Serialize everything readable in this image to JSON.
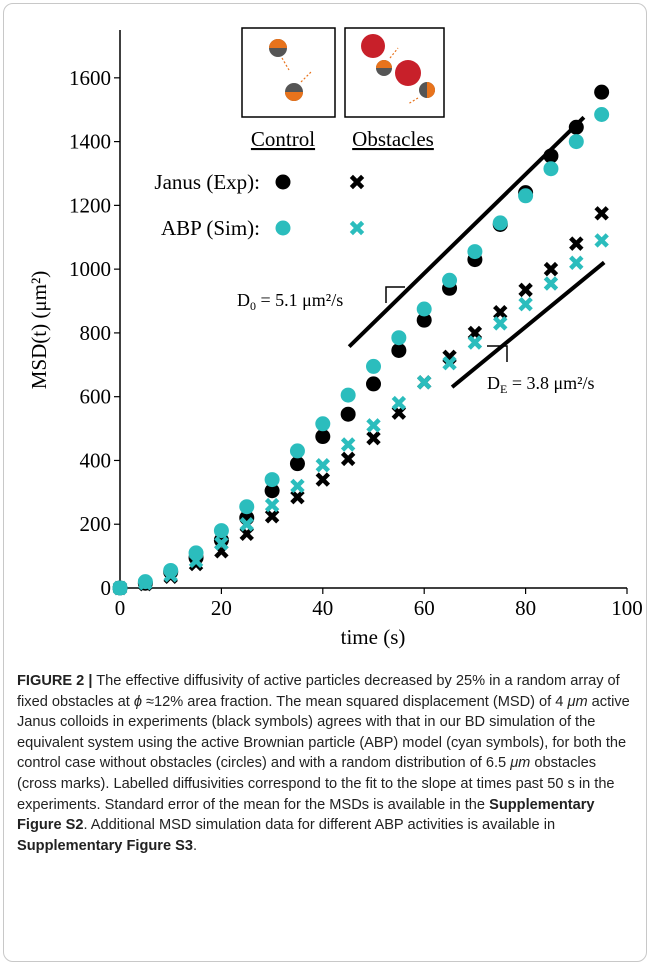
{
  "chart_data": {
    "type": "scatter",
    "xlabel": "time (s)",
    "ylabel": "MSD(t) (μm²)",
    "xlim": [
      0,
      100
    ],
    "xticks": [
      0,
      20,
      40,
      60,
      80,
      100
    ],
    "ylim": [
      0,
      1750
    ],
    "yticks": [
      0,
      200,
      400,
      600,
      800,
      1000,
      1200,
      1400,
      1600
    ],
    "x": [
      0,
      5,
      10,
      15,
      20,
      25,
      30,
      35,
      40,
      45,
      50,
      55,
      60,
      65,
      70,
      75,
      80,
      85,
      90,
      95
    ],
    "legend": {
      "columns": [
        "Control",
        "Obstacles"
      ],
      "rows": [
        "Janus (Exp):",
        "ABP (Sim):"
      ]
    },
    "series": [
      {
        "marker": "circle",
        "color": "#000000",
        "values": [
          0,
          15,
          50,
          95,
          150,
          220,
          305,
          390,
          475,
          545,
          640,
          745,
          840,
          940,
          1030,
          1140,
          1240,
          1355,
          1445,
          1555
        ]
      },
      {
        "marker": "x",
        "color": "#000000",
        "values": [
          0,
          12,
          35,
          75,
          115,
          170,
          225,
          285,
          340,
          405,
          470,
          550,
          645,
          725,
          800,
          865,
          935,
          1000,
          1080,
          1175
        ]
      },
      {
        "marker": "circle",
        "color": "#2bbdbd",
        "values": [
          0,
          20,
          55,
          110,
          180,
          255,
          340,
          430,
          515,
          605,
          695,
          785,
          875,
          965,
          1055,
          1145,
          1230,
          1315,
          1400,
          1485
        ]
      },
      {
        "marker": "x",
        "color": "#2bbdbd",
        "values": [
          0,
          15,
          40,
          85,
          140,
          200,
          260,
          320,
          385,
          450,
          510,
          580,
          645,
          705,
          770,
          830,
          890,
          955,
          1020,
          1090
        ]
      }
    ],
    "fit_lines": [
      {
        "x": [
          45.2,
          91.5
        ],
        "y": [
          757,
          1476
        ],
        "label": [
          "D",
          "0",
          " = 5.1 μm²/s"
        ]
      },
      {
        "x": [
          65.5,
          95.5
        ],
        "y": [
          630,
          1021
        ],
        "label": [
          "D",
          "E",
          " = 3.8 μm²/s"
        ]
      }
    ]
  },
  "caption": [
    {
      "text": "FIGURE 2 |",
      "style": "bold"
    },
    {
      "text": " The effective diffusivity of active particles decreased by 25% in a random array of fixed obstacles at ",
      "style": "normal"
    },
    {
      "text": "ϕ",
      "style": "italic"
    },
    {
      "text": " ≈12% area fraction. The mean squared displacement (MSD) of 4 ",
      "style": "normal"
    },
    {
      "text": "μm",
      "style": "italic"
    },
    {
      "text": " active Janus colloids in experiments (black symbols) agrees with that in our BD simulation of the equivalent system using the active Brownian particle (ABP) model (cyan symbols), for both the control case without obstacles (circles) and with a random distribution of 6.5 ",
      "style": "normal"
    },
    {
      "text": "μm",
      "style": "italic"
    },
    {
      "text": " obstacles (cross marks). Labelled diffusivities correspond to the fit to the slope at times past 50 s in the experiments. Standard error of the mean for the MSDs is available in the ",
      "style": "normal"
    },
    {
      "text": "Supplementary Figure S2",
      "style": "bold"
    },
    {
      "text": ". Additional MSD simulation data for different ABP activities is available in ",
      "style": "normal"
    },
    {
      "text": "Supplementary Figure S3",
      "style": "bold"
    },
    {
      "text": ".",
      "style": "normal"
    }
  ]
}
